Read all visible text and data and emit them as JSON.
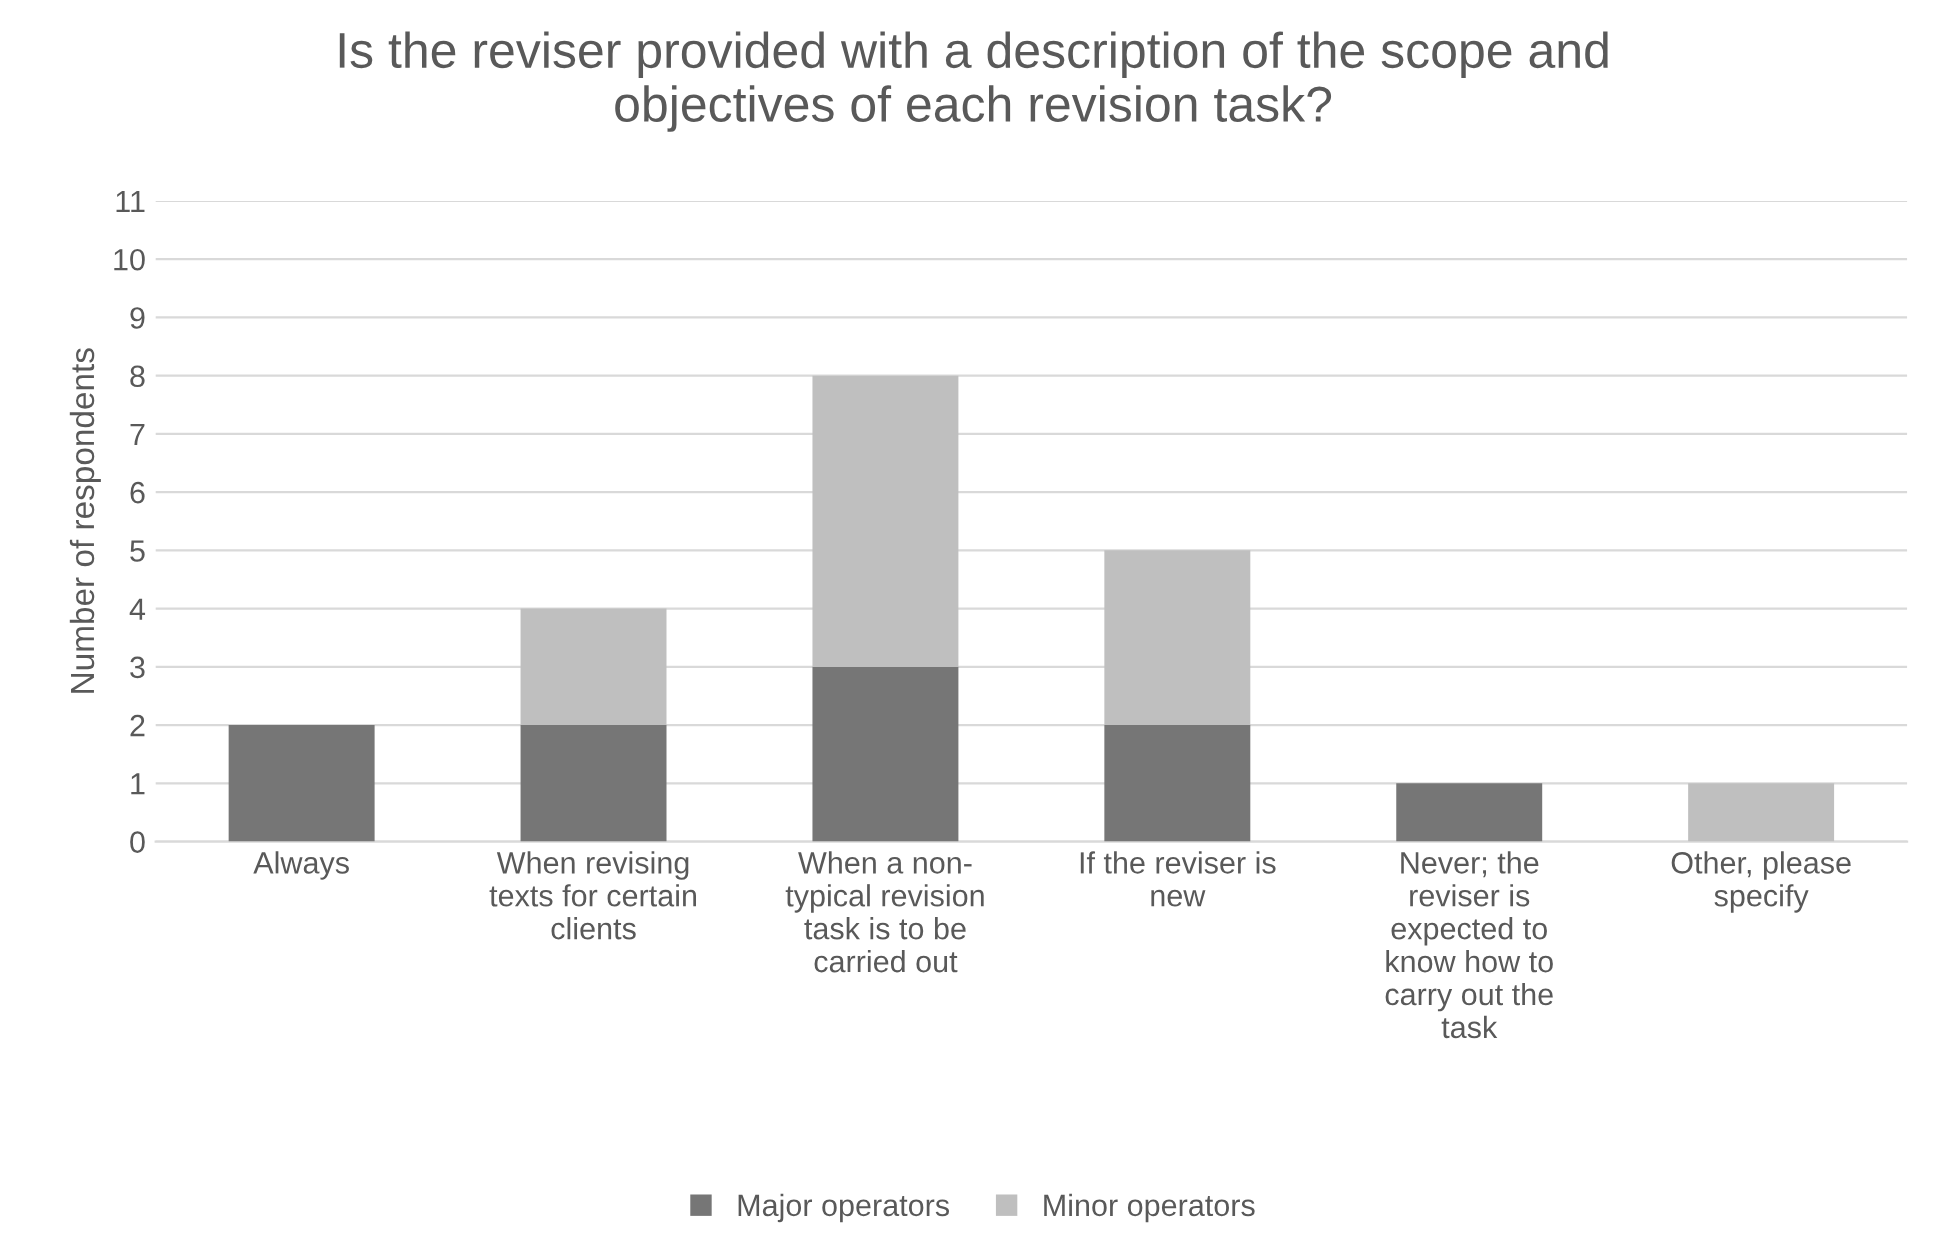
{
  "chart_data": {
    "type": "bar",
    "stacked": true,
    "title": "Is the reviser provided with a description of the scope and\nobjectives of each revision task?",
    "ylabel": "Number of respondents",
    "categories": [
      "Always",
      "When revising\ntexts for certain\nclients",
      "When a non-\ntypical revision\ntask is to be\ncarried out",
      "If the reviser is\nnew",
      "Never; the\nreviser is\nexpected to\nknow how to\ncarry out the\ntask",
      "Other, please\nspecify"
    ],
    "series": [
      {
        "name": "Major operators",
        "color": "#767676",
        "values": [
          2,
          2,
          3,
          2,
          1,
          0
        ]
      },
      {
        "name": "Minor operators",
        "color": "#bfbfbf",
        "values": [
          0,
          2,
          5,
          3,
          0,
          1
        ]
      }
    ],
    "ylim": [
      0,
      11
    ],
    "yticks": [
      0,
      1,
      2,
      3,
      4,
      5,
      6,
      7,
      8,
      9,
      10,
      11
    ],
    "grid": "y",
    "legend": "bottom"
  }
}
